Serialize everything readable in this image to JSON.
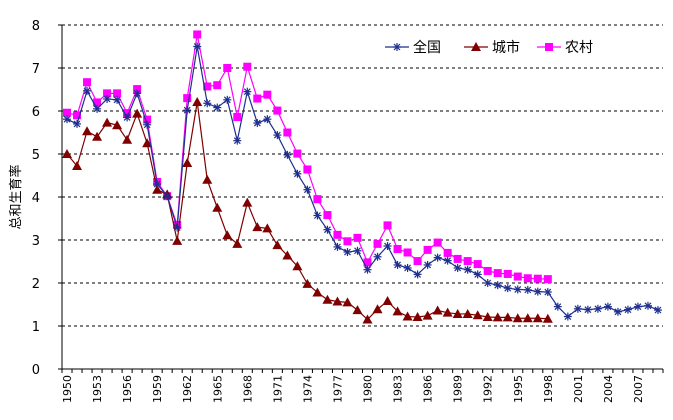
{
  "chart_data": {
    "type": "line",
    "title": "",
    "xlabel": "",
    "ylabel": "总和生育率",
    "ylim": [
      0,
      8
    ],
    "yticks": [
      0,
      1,
      2,
      3,
      4,
      5,
      6,
      7,
      8
    ],
    "xlim": [
      1950,
      2009
    ],
    "xticks": [
      1950,
      1953,
      1956,
      1959,
      1962,
      1965,
      1968,
      1971,
      1974,
      1977,
      1980,
      1983,
      1986,
      1989,
      1992,
      1995,
      1998,
      2001,
      2004,
      2007
    ],
    "grid": "horizontal dashed",
    "legend_position": "top-right",
    "series": [
      {
        "name": "全国",
        "color": "#1F2F8F",
        "marker": "asterisk",
        "points": [
          [
            1950,
            5.81
          ],
          [
            1951,
            5.7
          ],
          [
            1952,
            6.47
          ],
          [
            1953,
            6.05
          ],
          [
            1954,
            6.28
          ],
          [
            1955,
            6.26
          ],
          [
            1956,
            5.85
          ],
          [
            1957,
            6.41
          ],
          [
            1958,
            5.68
          ],
          [
            1959,
            4.3
          ],
          [
            1960,
            4.02
          ],
          [
            1961,
            3.29
          ],
          [
            1962,
            6.02
          ],
          [
            1963,
            7.5
          ],
          [
            1964,
            6.18
          ],
          [
            1965,
            6.08
          ],
          [
            1966,
            6.26
          ],
          [
            1967,
            5.31
          ],
          [
            1968,
            6.45
          ],
          [
            1969,
            5.72
          ],
          [
            1970,
            5.81
          ],
          [
            1971,
            5.44
          ],
          [
            1972,
            4.98
          ],
          [
            1973,
            4.54
          ],
          [
            1974,
            4.17
          ],
          [
            1975,
            3.57
          ],
          [
            1976,
            3.24
          ],
          [
            1977,
            2.84
          ],
          [
            1978,
            2.72
          ],
          [
            1979,
            2.75
          ],
          [
            1980,
            2.31
          ],
          [
            1981,
            2.61
          ],
          [
            1982,
            2.86
          ],
          [
            1983,
            2.42
          ],
          [
            1984,
            2.35
          ],
          [
            1985,
            2.2
          ],
          [
            1986,
            2.42
          ],
          [
            1987,
            2.59
          ],
          [
            1988,
            2.52
          ],
          [
            1989,
            2.35
          ],
          [
            1990,
            2.31
          ],
          [
            1991,
            2.2
          ],
          [
            1992,
            2.0
          ],
          [
            1993,
            1.95
          ],
          [
            1994,
            1.88
          ],
          [
            1995,
            1.85
          ],
          [
            1996,
            1.84
          ],
          [
            1997,
            1.8
          ],
          [
            1998,
            1.79
          ],
          [
            1999,
            1.45
          ],
          [
            2000,
            1.22
          ],
          [
            2001,
            1.4
          ],
          [
            2002,
            1.38
          ],
          [
            2003,
            1.4
          ],
          [
            2004,
            1.45
          ],
          [
            2005,
            1.33
          ],
          [
            2006,
            1.38
          ],
          [
            2007,
            1.45
          ],
          [
            2008,
            1.47
          ],
          [
            2009,
            1.37
          ]
        ]
      },
      {
        "name": "城市",
        "color": "#800000",
        "marker": "triangle",
        "points": [
          [
            1950,
            5.0
          ],
          [
            1951,
            4.72
          ],
          [
            1952,
            5.53
          ],
          [
            1953,
            5.4
          ],
          [
            1954,
            5.73
          ],
          [
            1955,
            5.67
          ],
          [
            1956,
            5.33
          ],
          [
            1957,
            5.94
          ],
          [
            1958,
            5.25
          ],
          [
            1959,
            4.17
          ],
          [
            1960,
            4.06
          ],
          [
            1961,
            2.98
          ],
          [
            1962,
            4.79
          ],
          [
            1963,
            6.21
          ],
          [
            1964,
            4.4
          ],
          [
            1965,
            3.75
          ],
          [
            1966,
            3.11
          ],
          [
            1967,
            2.91
          ],
          [
            1968,
            3.87
          ],
          [
            1969,
            3.3
          ],
          [
            1970,
            3.27
          ],
          [
            1971,
            2.88
          ],
          [
            1972,
            2.64
          ],
          [
            1973,
            2.39
          ],
          [
            1974,
            1.98
          ],
          [
            1975,
            1.78
          ],
          [
            1976,
            1.61
          ],
          [
            1977,
            1.57
          ],
          [
            1978,
            1.55
          ],
          [
            1979,
            1.37
          ],
          [
            1980,
            1.15
          ],
          [
            1981,
            1.39
          ],
          [
            1982,
            1.58
          ],
          [
            1983,
            1.34
          ],
          [
            1984,
            1.22
          ],
          [
            1985,
            1.21
          ],
          [
            1986,
            1.24
          ],
          [
            1987,
            1.36
          ],
          [
            1988,
            1.31
          ],
          [
            1989,
            1.28
          ],
          [
            1990,
            1.28
          ],
          [
            1991,
            1.25
          ],
          [
            1992,
            1.21
          ],
          [
            1993,
            1.2
          ],
          [
            1994,
            1.2
          ],
          [
            1995,
            1.18
          ],
          [
            1996,
            1.18
          ],
          [
            1997,
            1.18
          ],
          [
            1998,
            1.17
          ]
        ]
      },
      {
        "name": "农村",
        "color": "#FF00FF",
        "marker": "square",
        "points": [
          [
            1950,
            5.96
          ],
          [
            1951,
            5.9
          ],
          [
            1952,
            6.67
          ],
          [
            1953,
            6.2
          ],
          [
            1954,
            6.41
          ],
          [
            1955,
            6.41
          ],
          [
            1956,
            5.95
          ],
          [
            1957,
            6.51
          ],
          [
            1958,
            5.8
          ],
          [
            1959,
            4.35
          ],
          [
            1960,
            4.02
          ],
          [
            1961,
            3.35
          ],
          [
            1962,
            6.3
          ],
          [
            1963,
            7.78
          ],
          [
            1964,
            6.57
          ],
          [
            1965,
            6.6
          ],
          [
            1966,
            7.0
          ],
          [
            1967,
            5.86
          ],
          [
            1968,
            7.03
          ],
          [
            1969,
            6.29
          ],
          [
            1970,
            6.38
          ],
          [
            1971,
            6.01
          ],
          [
            1972,
            5.5
          ],
          [
            1973,
            5.01
          ],
          [
            1974,
            4.64
          ],
          [
            1975,
            3.95
          ],
          [
            1976,
            3.58
          ],
          [
            1977,
            3.12
          ],
          [
            1978,
            2.97
          ],
          [
            1979,
            3.05
          ],
          [
            1980,
            2.48
          ],
          [
            1981,
            2.91
          ],
          [
            1982,
            3.34
          ],
          [
            1983,
            2.79
          ],
          [
            1984,
            2.71
          ],
          [
            1985,
            2.51
          ],
          [
            1986,
            2.77
          ],
          [
            1987,
            2.94
          ],
          [
            1988,
            2.7
          ],
          [
            1989,
            2.56
          ],
          [
            1990,
            2.51
          ],
          [
            1991,
            2.44
          ],
          [
            1992,
            2.28
          ],
          [
            1993,
            2.23
          ],
          [
            1994,
            2.21
          ],
          [
            1995,
            2.15
          ],
          [
            1996,
            2.11
          ],
          [
            1997,
            2.1
          ],
          [
            1998,
            2.09
          ]
        ]
      }
    ]
  }
}
